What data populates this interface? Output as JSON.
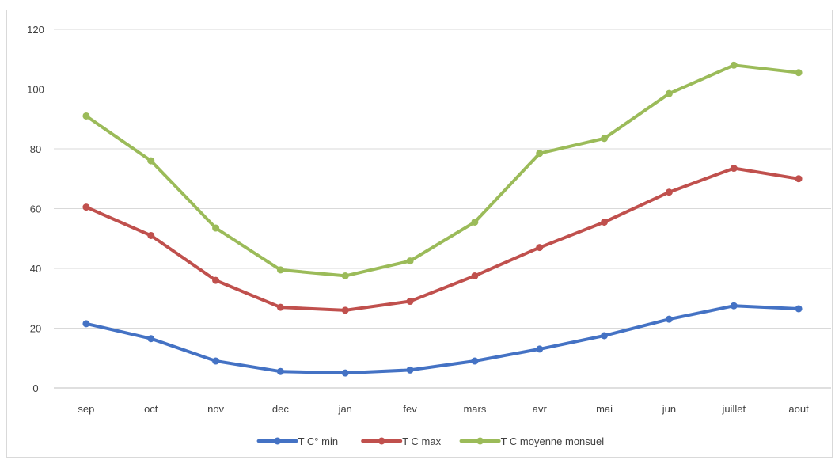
{
  "chart_data": {
    "type": "line",
    "title": "",
    "xlabel": "",
    "ylabel": "",
    "categories": [
      "sep",
      "oct",
      "nov",
      "dec",
      "jan",
      "fev",
      "mars",
      "avr",
      "mai",
      "jun",
      "juillet",
      "aout"
    ],
    "ylim": [
      0,
      120
    ],
    "yticks": [
      0,
      20,
      40,
      60,
      80,
      100,
      120
    ],
    "grid": true,
    "legend_position": "bottom",
    "series": [
      {
        "name": "T C° min",
        "color": "#4472c4",
        "values": [
          21.5,
          16.5,
          9,
          5.5,
          5,
          6,
          9,
          13,
          17.5,
          23,
          27.5,
          26.5
        ]
      },
      {
        "name": "T C max",
        "color": "#c0504d",
        "values": [
          60.5,
          51,
          36,
          27,
          26,
          29,
          37.5,
          47,
          55.5,
          65.5,
          73.5,
          70
        ]
      },
      {
        "name": "T C moyenne monsuel",
        "color": "#9bbb59",
        "values": [
          91,
          76,
          53.5,
          39.5,
          37.5,
          42.5,
          55.5,
          78.5,
          83.5,
          98.5,
          108,
          105.5
        ]
      }
    ]
  }
}
